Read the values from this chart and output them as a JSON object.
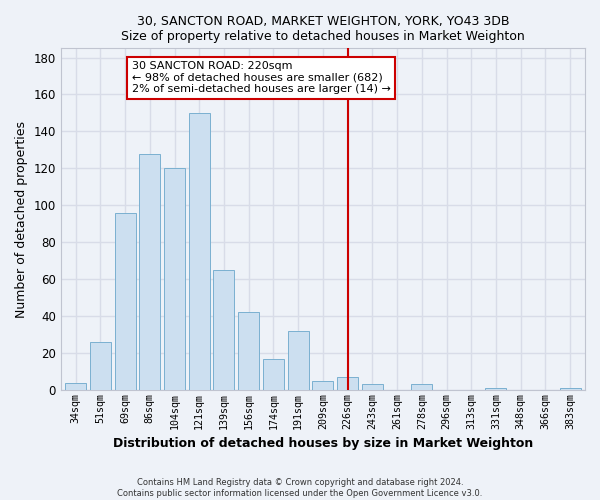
{
  "title": "30, SANCTON ROAD, MARKET WEIGHTON, YORK, YO43 3DB",
  "subtitle": "Size of property relative to detached houses in Market Weighton",
  "xlabel": "Distribution of detached houses by size in Market Weighton",
  "ylabel": "Number of detached properties",
  "bar_labels": [
    "34sqm",
    "51sqm",
    "69sqm",
    "86sqm",
    "104sqm",
    "121sqm",
    "139sqm",
    "156sqm",
    "174sqm",
    "191sqm",
    "209sqm",
    "226sqm",
    "243sqm",
    "261sqm",
    "278sqm",
    "296sqm",
    "313sqm",
    "331sqm",
    "348sqm",
    "366sqm",
    "383sqm"
  ],
  "bar_values": [
    4,
    26,
    96,
    128,
    120,
    150,
    65,
    42,
    17,
    32,
    5,
    7,
    3,
    0,
    3,
    0,
    0,
    1,
    0,
    0,
    1
  ],
  "bar_color": "#ccdff0",
  "bar_edge_color": "#7ab0d0",
  "property_label": "30 SANCTON ROAD: 220sqm",
  "annotation_line1": "← 98% of detached houses are smaller (682)",
  "annotation_line2": "2% of semi-detached houses are larger (14) →",
  "vline_color": "#cc0000",
  "vline_x_index": 11.0,
  "ylim": [
    0,
    185
  ],
  "yticks": [
    0,
    20,
    40,
    60,
    80,
    100,
    120,
    140,
    160,
    180
  ],
  "footer_line1": "Contains HM Land Registry data © Crown copyright and database right 2024.",
  "footer_line2": "Contains public sector information licensed under the Open Government Licence v3.0.",
  "background_color": "#eef2f8",
  "grid_color": "#d8dce8",
  "spine_color": "#c0c4d0"
}
